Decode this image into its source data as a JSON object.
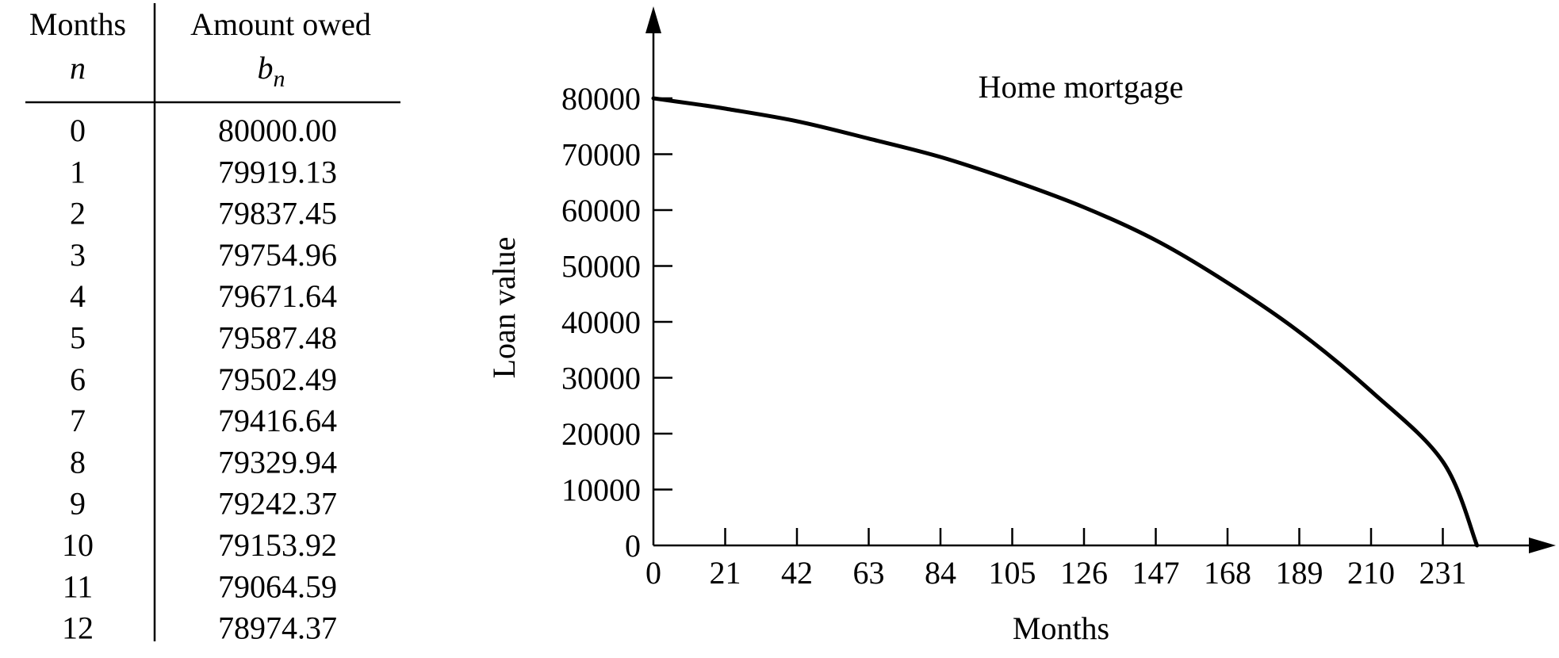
{
  "table": {
    "col1_header": "Months",
    "col1_symbol": "n",
    "col2_header": "Amount owed",
    "col2_symbol": "b",
    "col2_subscript": "n",
    "rows": [
      {
        "n": "0",
        "b": "80000.00"
      },
      {
        "n": "1",
        "b": "79919.13"
      },
      {
        "n": "2",
        "b": "79837.45"
      },
      {
        "n": "3",
        "b": "79754.96"
      },
      {
        "n": "4",
        "b": "79671.64"
      },
      {
        "n": "5",
        "b": "79587.48"
      },
      {
        "n": "6",
        "b": "79502.49"
      },
      {
        "n": "7",
        "b": "79416.64"
      },
      {
        "n": "8",
        "b": "79329.94"
      },
      {
        "n": "9",
        "b": "79242.37"
      },
      {
        "n": "10",
        "b": "79153.92"
      },
      {
        "n": "11",
        "b": "79064.59"
      },
      {
        "n": "12",
        "b": "78974.37"
      }
    ]
  },
  "chart_data": {
    "type": "line",
    "title": "Home mortgage",
    "xlabel": "Months",
    "ylabel": "Loan value",
    "xlim": [
      0,
      250
    ],
    "ylim": [
      0,
      80000
    ],
    "xticks": [
      0,
      21,
      42,
      63,
      84,
      105,
      126,
      147,
      168,
      189,
      210,
      231
    ],
    "yticks": [
      0,
      10000,
      20000,
      30000,
      40000,
      50000,
      60000,
      70000,
      80000
    ],
    "grid": false,
    "series": [
      {
        "color": "#000000",
        "x": [
          0,
          12,
          21,
          42,
          63,
          84,
          105,
          126,
          147,
          168,
          189,
          210,
          231,
          241
        ],
        "y": [
          80000,
          78974,
          78150,
          75900,
          72800,
          69500,
          65300,
          60500,
          54600,
          47000,
          38200,
          27600,
          15000,
          0
        ]
      }
    ]
  }
}
